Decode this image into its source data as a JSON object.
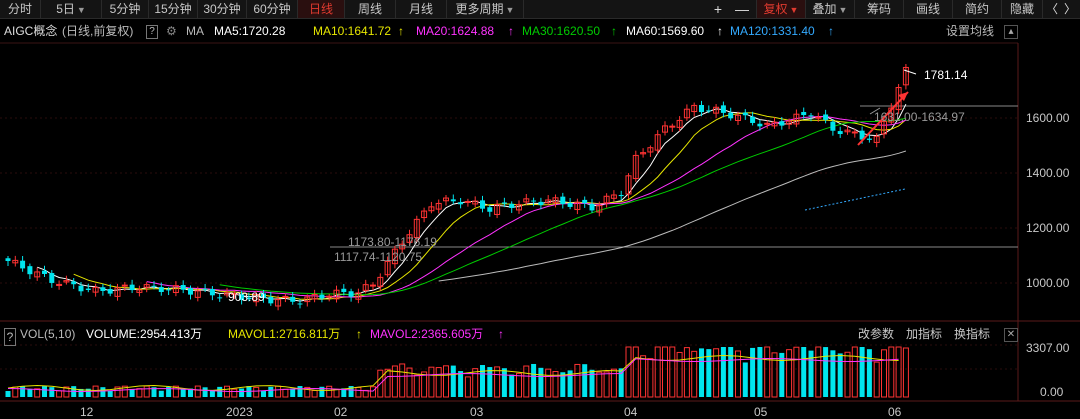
{
  "toolbar": {
    "items": [
      {
        "label": "分时",
        "caret": false,
        "active": false
      },
      {
        "label": "5日",
        "caret": true,
        "active": false
      },
      {
        "label": "5分钟",
        "caret": false,
        "active": false
      },
      {
        "label": "15分钟",
        "caret": false,
        "active": false
      },
      {
        "label": "30分钟",
        "caret": false,
        "active": false
      },
      {
        "label": "60分钟",
        "caret": false,
        "active": false
      },
      {
        "label": "日线",
        "caret": false,
        "active": true
      },
      {
        "label": "周线",
        "caret": false,
        "active": false
      },
      {
        "label": "月线",
        "caret": false,
        "active": false
      },
      {
        "label": "更多周期",
        "caret": true,
        "active": false
      }
    ],
    "plus": "+",
    "minus": "—",
    "fuquan": "复权",
    "diejia": "叠加",
    "chouma": "筹码",
    "huaxian": "画线",
    "jianyue": "简约",
    "yincang": "隐藏",
    "prev": "〈",
    "next": "〉"
  },
  "info": {
    "name": "AIGC概念",
    "mode": "(日线,前复权)",
    "help": "?",
    "ma_label": "MA",
    "ma5": "MA5:1720.28",
    "ma10": "MA10:1641.72",
    "ma20": "MA20:1624.88",
    "ma30": "MA30:1620.50",
    "ma60": "MA60:1569.60",
    "ma120": "MA120:1331.40",
    "settings": "设置均线"
  },
  "colors": {
    "up": "#ff3333",
    "down": "#00e5ee",
    "ma5": "#ffffff",
    "ma10": "#e6e600",
    "ma20": "#ff33ff",
    "ma30": "#00cc00",
    "ma60": "#ffffff",
    "ma120": "#33aaff",
    "active": "#e03a2f"
  },
  "annotations": {
    "last_high": "1781.14",
    "range1": "1631.00-1634.97",
    "range2": "1173.80-1176.19",
    "range3": "1117.74-1120.75",
    "low": "903.89"
  },
  "volume": {
    "label": "VOL(5,10)",
    "volume": "VOLUME:2954.413万",
    "mavol1": "MAVOL1:2716.811万",
    "mavol2": "MAVOL2:2365.605万",
    "btn_params": "改参数",
    "btn_add": "加指标",
    "btn_switch": "换指标",
    "top": "3307.00",
    "bottom": "0.00"
  },
  "price_axis": [
    "1600.00",
    "1400.00",
    "1200.00",
    "1000.00"
  ],
  "date_axis": [
    "12",
    "2023",
    "02",
    "03",
    "04",
    "05",
    "06"
  ]
}
